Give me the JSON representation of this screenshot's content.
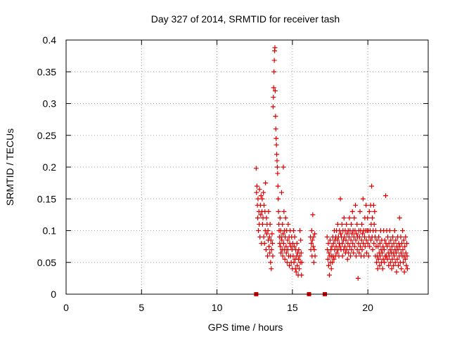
{
  "chart_data": {
    "type": "scatter",
    "title": "Day 327 of 2014, SRMTID for receiver tash",
    "xlabel": "GPS time / hours",
    "ylabel": "SRMTID / TECUs",
    "xlim": [
      0,
      24
    ],
    "ylim": [
      0,
      0.4
    ],
    "xticks": [
      0,
      5,
      10,
      15,
      20
    ],
    "yticks": [
      0,
      0.05,
      0.1,
      0.15,
      0.2,
      0.25,
      0.3,
      0.35,
      0.4
    ],
    "xtick_labels": [
      "0",
      "5",
      "10",
      "15",
      "20"
    ],
    "ytick_labels": [
      "0",
      "0.05",
      "0.1",
      "0.15",
      "0.2",
      "0.25",
      "0.3",
      "0.35",
      "0.4"
    ],
    "grid": true,
    "marker": "+",
    "color": "#dd0000",
    "zero_markers": [
      12.6,
      16.1,
      17.15
    ],
    "points": [
      [
        12.6,
        0.198
      ],
      [
        12.62,
        0.16
      ],
      [
        12.65,
        0.17
      ],
      [
        12.68,
        0.14
      ],
      [
        12.7,
        0.12
      ],
      [
        12.72,
        0.15
      ],
      [
        12.75,
        0.1
      ],
      [
        12.78,
        0.13
      ],
      [
        12.8,
        0.11
      ],
      [
        12.82,
        0.165
      ],
      [
        12.85,
        0.09
      ],
      [
        12.88,
        0.14
      ],
      [
        12.9,
        0.125
      ],
      [
        12.92,
        0.155
      ],
      [
        12.95,
        0.08
      ],
      [
        12.98,
        0.13
      ],
      [
        13.0,
        0.15
      ],
      [
        13.02,
        0.11
      ],
      [
        13.05,
        0.12
      ],
      [
        13.08,
        0.16
      ],
      [
        13.1,
        0.09
      ],
      [
        13.12,
        0.14
      ],
      [
        13.15,
        0.08
      ],
      [
        13.18,
        0.13
      ],
      [
        13.2,
        0.1
      ],
      [
        13.22,
        0.175
      ],
      [
        13.25,
        0.07
      ],
      [
        13.28,
        0.12
      ],
      [
        13.3,
        0.095
      ],
      [
        13.32,
        0.11
      ],
      [
        13.35,
        0.06
      ],
      [
        13.38,
        0.1
      ],
      [
        13.4,
        0.085
      ],
      [
        13.42,
        0.13
      ],
      [
        13.45,
        0.075
      ],
      [
        13.48,
        0.09
      ],
      [
        13.5,
        0.065
      ],
      [
        13.52,
        0.11
      ],
      [
        13.55,
        0.05
      ],
      [
        13.58,
        0.085
      ],
      [
        13.6,
        0.04
      ],
      [
        13.62,
        0.07
      ],
      [
        13.65,
        0.095
      ],
      [
        13.68,
        0.08
      ],
      [
        13.7,
        0.06
      ],
      [
        13.72,
        0.295
      ],
      [
        13.74,
        0.31
      ],
      [
        13.76,
        0.325
      ],
      [
        13.78,
        0.35
      ],
      [
        13.8,
        0.368
      ],
      [
        13.82,
        0.383
      ],
      [
        13.84,
        0.388
      ],
      [
        13.86,
        0.32
      ],
      [
        13.88,
        0.28
      ],
      [
        13.9,
        0.26
      ],
      [
        13.92,
        0.245
      ],
      [
        13.94,
        0.235
      ],
      [
        13.96,
        0.22
      ],
      [
        13.98,
        0.21
      ],
      [
        14.0,
        0.2
      ],
      [
        14.02,
        0.19
      ],
      [
        14.04,
        0.17
      ],
      [
        14.06,
        0.15
      ],
      [
        14.08,
        0.13
      ],
      [
        14.1,
        0.11
      ],
      [
        14.12,
        0.1
      ],
      [
        14.14,
        0.09
      ],
      [
        14.16,
        0.08
      ],
      [
        14.18,
        0.12
      ],
      [
        14.2,
        0.075
      ],
      [
        14.22,
        0.1
      ],
      [
        14.24,
        0.065
      ],
      [
        14.26,
        0.09
      ],
      [
        14.28,
        0.16
      ],
      [
        14.3,
        0.085
      ],
      [
        14.32,
        0.07
      ],
      [
        14.34,
        0.11
      ],
      [
        14.36,
        0.06
      ],
      [
        14.38,
        0.095
      ],
      [
        14.4,
        0.2
      ],
      [
        14.42,
        0.08
      ],
      [
        14.44,
        0.13
      ],
      [
        14.46,
        0.07
      ],
      [
        14.48,
        0.1
      ],
      [
        14.5,
        0.055
      ],
      [
        14.52,
        0.09
      ],
      [
        14.55,
        0.12
      ],
      [
        14.58,
        0.075
      ],
      [
        14.6,
        0.065
      ],
      [
        14.62,
        0.1
      ],
      [
        14.65,
        0.05
      ],
      [
        14.68,
        0.085
      ],
      [
        14.7,
        0.07
      ],
      [
        14.72,
        0.11
      ],
      [
        14.75,
        0.06
      ],
      [
        14.78,
        0.09
      ],
      [
        14.8,
        0.045
      ],
      [
        14.82,
        0.08
      ],
      [
        14.85,
        0.1
      ],
      [
        14.88,
        0.06
      ],
      [
        14.9,
        0.075
      ],
      [
        14.92,
        0.05
      ],
      [
        14.95,
        0.09
      ],
      [
        14.98,
        0.07
      ],
      [
        15.0,
        0.04
      ],
      [
        15.02,
        0.08
      ],
      [
        15.05,
        0.06
      ],
      [
        15.08,
        0.1
      ],
      [
        15.1,
        0.05
      ],
      [
        15.12,
        0.075
      ],
      [
        15.15,
        0.09
      ],
      [
        15.18,
        0.055
      ],
      [
        15.2,
        0.04
      ],
      [
        15.22,
        0.07
      ],
      [
        15.25,
        0.035
      ],
      [
        15.28,
        0.06
      ],
      [
        15.3,
        0.08
      ],
      [
        15.32,
        0.045
      ],
      [
        15.35,
        0.065
      ],
      [
        15.38,
        0.03
      ],
      [
        15.4,
        0.055
      ],
      [
        15.42,
        0.07
      ],
      [
        15.45,
        0.04
      ],
      [
        15.48,
        0.06
      ],
      [
        15.5,
        0.1
      ],
      [
        15.52,
        0.05
      ],
      [
        15.55,
        0.085
      ],
      [
        15.58,
        0.065
      ],
      [
        15.6,
        0.03
      ],
      [
        15.62,
        0.05
      ],
      [
        16.2,
        0.09
      ],
      [
        16.22,
        0.07
      ],
      [
        16.25,
        0.08
      ],
      [
        16.28,
        0.1
      ],
      [
        16.3,
        0.06
      ],
      [
        16.32,
        0.085
      ],
      [
        16.35,
        0.125
      ],
      [
        16.38,
        0.075
      ],
      [
        16.4,
        0.09
      ],
      [
        16.42,
        0.05
      ],
      [
        16.45,
        0.07
      ],
      [
        16.48,
        0.095
      ],
      [
        16.5,
        0.06
      ],
      [
        17.3,
        0.09
      ],
      [
        17.32,
        0.07
      ],
      [
        17.35,
        0.055
      ],
      [
        17.38,
        0.08
      ],
      [
        17.4,
        0.045
      ],
      [
        17.42,
        0.065
      ],
      [
        17.45,
        0.03
      ],
      [
        17.48,
        0.06
      ],
      [
        17.5,
        0.085
      ],
      [
        17.52,
        0.05
      ],
      [
        17.55,
        0.07
      ],
      [
        17.58,
        0.04
      ],
      [
        17.6,
        0.06
      ],
      [
        17.62,
        0.075
      ],
      [
        17.65,
        0.05
      ],
      [
        17.68,
        0.09
      ],
      [
        17.7,
        0.06
      ],
      [
        17.72,
        0.08
      ],
      [
        17.75,
        0.055
      ],
      [
        17.78,
        0.1
      ],
      [
        17.8,
        0.07
      ],
      [
        17.82,
        0.085
      ],
      [
        17.85,
        0.06
      ],
      [
        17.88,
        0.09
      ],
      [
        17.9,
        0.075
      ],
      [
        17.92,
        0.1
      ],
      [
        17.95,
        0.065
      ],
      [
        17.98,
        0.085
      ],
      [
        18.0,
        0.11
      ],
      [
        18.02,
        0.07
      ],
      [
        18.05,
        0.09
      ],
      [
        18.08,
        0.06
      ],
      [
        18.1,
        0.08
      ],
      [
        18.12,
        0.1
      ],
      [
        18.15,
        0.075
      ],
      [
        18.18,
        0.15
      ],
      [
        18.2,
        0.095
      ],
      [
        18.22,
        0.07
      ],
      [
        18.25,
        0.09
      ],
      [
        18.28,
        0.11
      ],
      [
        18.3,
        0.08
      ],
      [
        18.32,
        0.06
      ],
      [
        18.35,
        0.1
      ],
      [
        18.38,
        0.085
      ],
      [
        18.4,
        0.07
      ],
      [
        18.42,
        0.12
      ],
      [
        18.45,
        0.09
      ],
      [
        18.48,
        0.075
      ],
      [
        18.5,
        0.1
      ],
      [
        18.52,
        0.065
      ],
      [
        18.55,
        0.085
      ],
      [
        18.58,
        0.11
      ],
      [
        18.6,
        0.07
      ],
      [
        18.62,
        0.095
      ],
      [
        18.65,
        0.055
      ],
      [
        18.68,
        0.08
      ],
      [
        18.7,
        0.1
      ],
      [
        18.72,
        0.065
      ],
      [
        18.75,
        0.09
      ],
      [
        18.78,
        0.12
      ],
      [
        18.8,
        0.075
      ],
      [
        18.82,
        0.1
      ],
      [
        18.85,
        0.06
      ],
      [
        18.88,
        0.085
      ],
      [
        18.9,
        0.11
      ],
      [
        18.92,
        0.07
      ],
      [
        18.95,
        0.095
      ],
      [
        18.98,
        0.13
      ],
      [
        19.0,
        0.08
      ],
      [
        19.02,
        0.1
      ],
      [
        19.05,
        0.065
      ],
      [
        19.08,
        0.09
      ],
      [
        19.1,
        0.12
      ],
      [
        19.12,
        0.075
      ],
      [
        19.15,
        0.1
      ],
      [
        19.18,
        0.14
      ],
      [
        19.2,
        0.085
      ],
      [
        19.22,
        0.06
      ],
      [
        19.25,
        0.095
      ],
      [
        19.28,
        0.11
      ],
      [
        19.3,
        0.07
      ],
      [
        19.32,
        0.09
      ],
      [
        19.35,
        0.025
      ],
      [
        19.38,
        0.08
      ],
      [
        19.4,
        0.1
      ],
      [
        19.42,
        0.065
      ],
      [
        19.45,
        0.09
      ],
      [
        19.48,
        0.13
      ],
      [
        19.5,
        0.075
      ],
      [
        19.52,
        0.1
      ],
      [
        19.55,
        0.06
      ],
      [
        19.58,
        0.085
      ],
      [
        19.6,
        0.11
      ],
      [
        19.62,
        0.07
      ],
      [
        19.65,
        0.095
      ],
      [
        19.68,
        0.15
      ],
      [
        19.7,
        0.08
      ],
      [
        19.72,
        0.1
      ],
      [
        19.75,
        0.06
      ],
      [
        19.78,
        0.09
      ],
      [
        19.8,
        0.12
      ],
      [
        19.82,
        0.075
      ],
      [
        19.85,
        0.1
      ],
      [
        19.88,
        0.14
      ],
      [
        19.9,
        0.085
      ],
      [
        19.92,
        0.065
      ],
      [
        19.95,
        0.1
      ],
      [
        19.98,
        0.12
      ],
      [
        20.0,
        0.08
      ],
      [
        20.02,
        0.1
      ],
      [
        20.05,
        0.06
      ],
      [
        20.08,
        0.09
      ],
      [
        20.1,
        0.13
      ],
      [
        20.12,
        0.075
      ],
      [
        20.15,
        0.1
      ],
      [
        20.18,
        0.14
      ],
      [
        20.2,
        0.085
      ],
      [
        20.22,
        0.11
      ],
      [
        20.25,
        0.17
      ],
      [
        20.28,
        0.09
      ],
      [
        20.3,
        0.12
      ],
      [
        20.32,
        0.07
      ],
      [
        20.35,
        0.1
      ],
      [
        20.38,
        0.14
      ],
      [
        20.4,
        0.08
      ],
      [
        20.42,
        0.11
      ],
      [
        20.45,
        0.13
      ],
      [
        20.48,
        0.09
      ],
      [
        20.5,
        0.06
      ],
      [
        20.52,
        0.1
      ],
      [
        20.55,
        0.075
      ],
      [
        20.58,
        0.05
      ],
      [
        20.6,
        0.085
      ],
      [
        20.62,
        0.06
      ],
      [
        20.65,
        0.04
      ],
      [
        20.68,
        0.075
      ],
      [
        20.7,
        0.055
      ],
      [
        20.72,
        0.09
      ],
      [
        20.75,
        0.065
      ],
      [
        20.78,
        0.045
      ],
      [
        20.8,
        0.08
      ],
      [
        20.82,
        0.06
      ],
      [
        20.85,
        0.1
      ],
      [
        20.88,
        0.07
      ],
      [
        20.9,
        0.05
      ],
      [
        20.92,
        0.085
      ],
      [
        20.95,
        0.065
      ],
      [
        20.98,
        0.04
      ],
      [
        21.0,
        0.075
      ],
      [
        21.02,
        0.055
      ],
      [
        21.05,
        0.1
      ],
      [
        21.08,
        0.07
      ],
      [
        21.1,
        0.05
      ],
      [
        21.12,
        0.085
      ],
      [
        21.15,
        0.06
      ],
      [
        21.18,
        0.155
      ],
      [
        21.2,
        0.08
      ],
      [
        21.22,
        0.06
      ],
      [
        21.25,
        0.1
      ],
      [
        21.28,
        0.075
      ],
      [
        21.3,
        0.055
      ],
      [
        21.32,
        0.09
      ],
      [
        21.35,
        0.065
      ],
      [
        21.38,
        0.045
      ],
      [
        21.4,
        0.08
      ],
      [
        21.42,
        0.06
      ],
      [
        21.45,
        0.1
      ],
      [
        21.48,
        0.07
      ],
      [
        21.5,
        0.05
      ],
      [
        21.52,
        0.085
      ],
      [
        21.55,
        0.065
      ],
      [
        21.58,
        0.04
      ],
      [
        21.6,
        0.075
      ],
      [
        21.62,
        0.055
      ],
      [
        21.65,
        0.09
      ],
      [
        21.68,
        0.065
      ],
      [
        21.7,
        0.045
      ],
      [
        21.72,
        0.08
      ],
      [
        21.75,
        0.06
      ],
      [
        21.78,
        0.1
      ],
      [
        21.8,
        0.07
      ],
      [
        21.82,
        0.05
      ],
      [
        21.85,
        0.085
      ],
      [
        21.88,
        0.065
      ],
      [
        21.9,
        0.035
      ],
      [
        21.92,
        0.075
      ],
      [
        21.95,
        0.055
      ],
      [
        21.98,
        0.09
      ],
      [
        22.0,
        0.07
      ],
      [
        22.02,
        0.045
      ],
      [
        22.05,
        0.08
      ],
      [
        22.08,
        0.06
      ],
      [
        22.1,
        0.12
      ],
      [
        22.12,
        0.075
      ],
      [
        22.15,
        0.05
      ],
      [
        22.18,
        0.09
      ],
      [
        22.2,
        0.065
      ],
      [
        22.22,
        0.04
      ],
      [
        22.25,
        0.08
      ],
      [
        22.28,
        0.06
      ],
      [
        22.3,
        0.1
      ],
      [
        22.32,
        0.07
      ],
      [
        22.35,
        0.05
      ],
      [
        22.38,
        0.085
      ],
      [
        22.4,
        0.06
      ],
      [
        22.42,
        0.035
      ],
      [
        22.45,
        0.075
      ],
      [
        22.48,
        0.055
      ],
      [
        22.5,
        0.09
      ],
      [
        22.52,
        0.065
      ],
      [
        22.55,
        0.045
      ],
      [
        22.58,
        0.08
      ],
      [
        22.6,
        0.06
      ],
      [
        22.62,
        0.04
      ]
    ]
  }
}
